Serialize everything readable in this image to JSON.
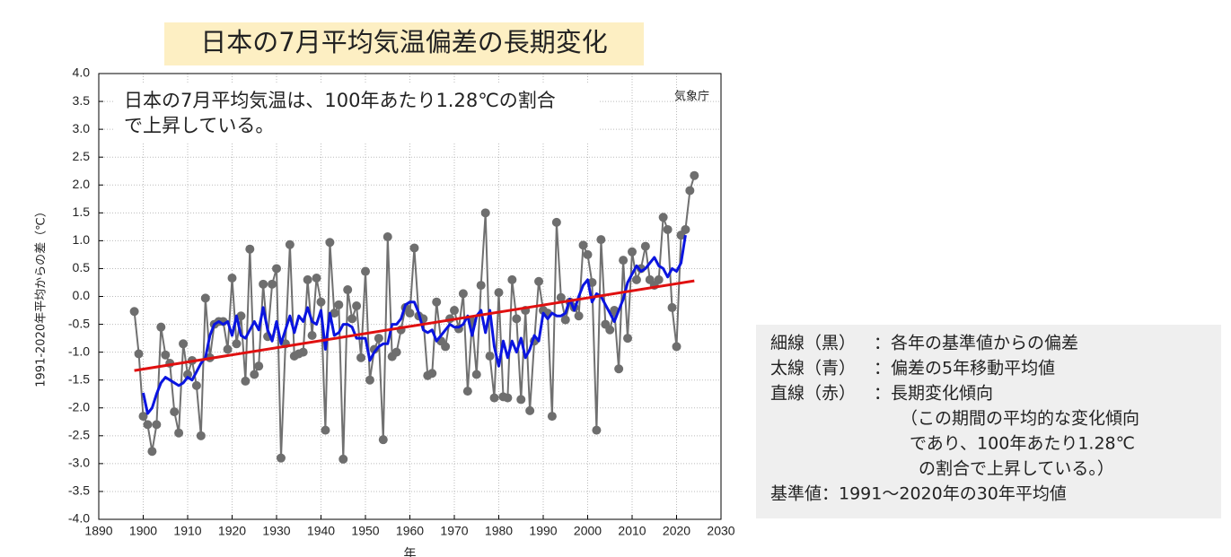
{
  "chart_data": {
    "type": "line",
    "title": "日本の7月平均気温偏差の長期変化",
    "annotation": "日本の7月平均気温は、100年あたり1.28℃の割合で上昇している。",
    "source": "気象庁",
    "ylabel": "1991-2020年平均からの差（℃）",
    "xlabel": "年",
    "xlim": [
      1890,
      2030
    ],
    "xticks": [
      1890,
      1900,
      1910,
      1920,
      1930,
      1940,
      1950,
      1960,
      1970,
      1980,
      1990,
      2000,
      2010,
      2020,
      2030
    ],
    "ylim": [
      -4,
      4
    ],
    "yticks": [
      {
        "value": -4,
        "label": "-4.0"
      },
      {
        "value": -3.5,
        "label": "-3.5"
      },
      {
        "value": -3,
        "label": "-3.0"
      },
      {
        "value": -2.5,
        "label": "-2.5"
      },
      {
        "value": -2,
        "label": "-2.0"
      },
      {
        "value": -1.5,
        "label": "-1.5"
      },
      {
        "value": -1,
        "label": "-1.0"
      },
      {
        "value": -0.5,
        "label": "-0.5"
      },
      {
        "value": 0,
        "label": "0.0"
      },
      {
        "value": 0.5,
        "label": "0.5"
      },
      {
        "value": 1,
        "label": "1.0"
      },
      {
        "value": 1.5,
        "label": "1.5"
      },
      {
        "value": 2,
        "label": "2.0"
      },
      {
        "value": 2.5,
        "label": "2.5"
      },
      {
        "value": 3,
        "label": "3.0"
      },
      {
        "value": 3.5,
        "label": "3.5"
      },
      {
        "value": 4,
        "label": "4.0"
      }
    ],
    "grid": true,
    "x": [
      1898,
      1899,
      1900,
      1901,
      1902,
      1903,
      1904,
      1905,
      1906,
      1907,
      1908,
      1909,
      1910,
      1911,
      1912,
      1913,
      1914,
      1915,
      1916,
      1917,
      1918,
      1919,
      1920,
      1921,
      1922,
      1923,
      1924,
      1925,
      1926,
      1927,
      1928,
      1929,
      1930,
      1931,
      1932,
      1933,
      1934,
      1935,
      1936,
      1937,
      1938,
      1939,
      1940,
      1941,
      1942,
      1943,
      1944,
      1945,
      1946,
      1947,
      1948,
      1949,
      1950,
      1951,
      1952,
      1953,
      1954,
      1955,
      1956,
      1957,
      1958,
      1959,
      1960,
      1961,
      1962,
      1963,
      1964,
      1965,
      1966,
      1967,
      1968,
      1969,
      1970,
      1971,
      1972,
      1973,
      1974,
      1975,
      1976,
      1977,
      1978,
      1979,
      1980,
      1981,
      1982,
      1983,
      1984,
      1985,
      1986,
      1987,
      1988,
      1989,
      1990,
      1991,
      1992,
      1993,
      1994,
      1995,
      1996,
      1997,
      1998,
      1999,
      2000,
      2001,
      2002,
      2003,
      2004,
      2005,
      2006,
      2007,
      2008,
      2009,
      2010,
      2011,
      2012,
      2013,
      2014,
      2015,
      2016,
      2017,
      2018,
      2019,
      2020,
      2021,
      2022,
      2023,
      2024
    ],
    "series": [
      {
        "color": "#707070",
        "marker_color": "#6e6e6e",
        "values": [
          -0.27,
          -1.03,
          -2.15,
          -2.3,
          -2.78,
          -2.3,
          -0.55,
          -1.05,
          -1.2,
          -2.07,
          -2.45,
          -0.85,
          -1.4,
          -1.15,
          -1.6,
          -2.5,
          -0.03,
          -1.1,
          -0.5,
          -0.45,
          -0.45,
          -0.95,
          0.33,
          -0.85,
          -0.35,
          -1.52,
          0.85,
          -1.4,
          -1.25,
          0.22,
          -0.72,
          0.22,
          0.5,
          -2.9,
          -0.85,
          0.93,
          -1.07,
          -1.03,
          -1.0,
          0.3,
          -0.7,
          0.33,
          -0.1,
          -2.4,
          0.97,
          -0.3,
          -0.15,
          -2.92,
          0.12,
          -0.4,
          -0.17,
          -1.1,
          0.45,
          -1.5,
          -0.95,
          -0.75,
          -2.57,
          1.07,
          -1.08,
          -1.0,
          -0.6,
          -0.2,
          -0.3,
          0.87,
          -0.35,
          -0.4,
          -1.42,
          -1.38,
          -0.1,
          -0.8,
          -0.9,
          -0.4,
          -0.25,
          -0.58,
          0.05,
          -1.7,
          -0.45,
          -1.4,
          0.2,
          1.5,
          -1.07,
          -1.82,
          0.07,
          -1.8,
          -1.82,
          0.3,
          -0.4,
          -1.85,
          -0.25,
          -2.05,
          -0.8,
          0.27,
          -0.25,
          -0.3,
          -2.15,
          1.33,
          -0.02,
          -0.42,
          -0.1,
          -0.2,
          -0.35,
          0.92,
          0.75,
          0.25,
          -2.4,
          1.02,
          -0.5,
          -0.6,
          -0.25,
          -1.3,
          0.65,
          -0.75,
          0.8,
          0.3,
          0.5,
          0.9,
          0.3,
          0.2,
          0.3,
          1.42,
          1.2,
          -0.2,
          -0.9,
          1.1,
          1.2,
          1.9,
          2.17
        ]
      },
      {
        "color": "#0a14e0",
        "values": [
          null,
          null,
          -1.73,
          -2.1,
          -2.0,
          -1.75,
          -1.55,
          -1.45,
          -1.5,
          -1.55,
          -1.6,
          -1.55,
          -1.45,
          -1.5,
          -1.35,
          -1.2,
          -1.1,
          -0.7,
          -0.5,
          -0.45,
          -0.5,
          -0.45,
          -0.7,
          -0.35,
          -0.7,
          -0.75,
          -0.6,
          -0.45,
          -0.6,
          -0.2,
          -0.6,
          -0.8,
          -0.45,
          -0.85,
          -0.6,
          -0.35,
          -0.65,
          -0.35,
          -0.45,
          -0.2,
          -0.45,
          -0.5,
          -0.25,
          -0.95,
          -0.3,
          -0.7,
          -0.65,
          -0.5,
          -0.5,
          -0.55,
          -0.75,
          -0.75,
          -0.75,
          -1.15,
          -1.0,
          -0.9,
          -0.85,
          -0.85,
          -0.5,
          -0.5,
          -0.4,
          -0.15,
          -0.1,
          -0.1,
          -0.3,
          -0.6,
          -0.65,
          -0.6,
          -0.8,
          -0.7,
          -0.6,
          -0.5,
          -0.55,
          -0.55,
          -0.5,
          -0.35,
          -0.7,
          -0.35,
          -0.25,
          -0.65,
          -0.25,
          -0.9,
          -1.25,
          -0.8,
          -1.1,
          -0.8,
          -1.0,
          -0.75,
          -1.1,
          -0.95,
          -0.7,
          -0.8,
          -0.3,
          -0.4,
          -0.3,
          -0.35,
          -0.35,
          -0.3,
          -0.05,
          -0.25,
          0.0,
          0.2,
          0.3,
          -0.1,
          0.05,
          0.0,
          -0.15,
          -0.3,
          -0.45,
          -0.25,
          -0.05,
          0.25,
          0.4,
          0.55,
          0.45,
          0.5,
          0.6,
          0.7,
          0.55,
          0.5,
          0.35,
          0.5,
          0.45,
          0.6,
          1.1,
          null,
          null
        ]
      }
    ],
    "trend_line": {
      "color": "#e01010",
      "x": [
        1898,
        2024
      ],
      "values": [
        -1.33,
        0.28
      ]
    },
    "legend": {
      "items": [
        {
          "key": "細線（黒）",
          "key_color": "#000000",
          "text": "：各年の基準値からの偏差"
        },
        {
          "key": "太線（青）",
          "key_color": "#1f6fc0",
          "text": "：偏差の5年移動平均値"
        },
        {
          "key": "直線（赤）",
          "key_color": "#e01010",
          "text": "：長期変化傾向"
        }
      ],
      "notes": [
        "（この期間の平均的な変化傾向",
        "であり、100年あたり1.28℃",
        "の割合で上昇している。）"
      ],
      "base": "基準値：1991～2020年の30年平均値"
    }
  }
}
